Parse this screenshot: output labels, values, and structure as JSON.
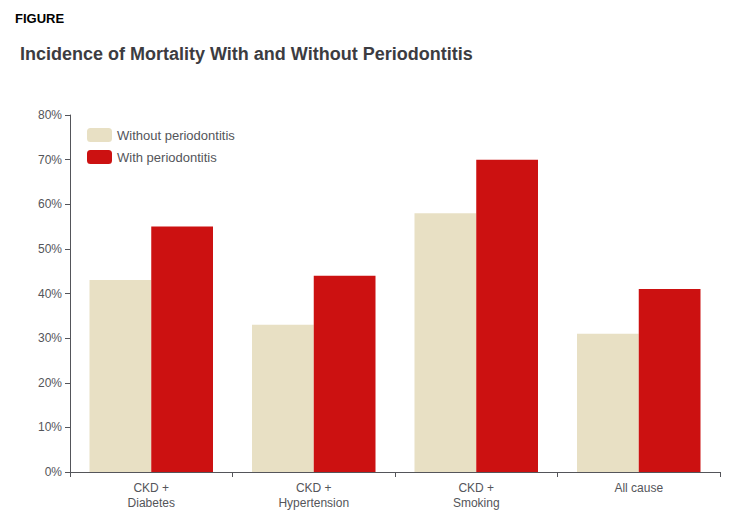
{
  "chart_data": {
    "type": "bar",
    "title": "Incidence of Mortality With and Without Periodontitis",
    "annotations": [
      "FIGURE"
    ],
    "categories": [
      "CKD +\nDiabetes",
      "CKD +\nHypertension",
      "CKD +\nSmoking",
      "All cause"
    ],
    "series": [
      {
        "name": "Without periodontitis",
        "color": "#E8E0C4",
        "values": [
          43,
          33,
          58,
          31
        ]
      },
      {
        "name": "With periodontitis",
        "color": "#CC1111",
        "values": [
          55,
          44,
          70,
          41
        ]
      }
    ],
    "ylim": [
      0,
      80
    ],
    "yticks": [
      {
        "value": 0,
        "label": "0%"
      },
      {
        "value": 10,
        "label": "10%"
      },
      {
        "value": 20,
        "label": "20%"
      },
      {
        "value": 30,
        "label": "30%"
      },
      {
        "value": 40,
        "label": "40%"
      },
      {
        "value": 50,
        "label": "50%"
      },
      {
        "value": 60,
        "label": "60%"
      },
      {
        "value": 70,
        "label": "70%"
      },
      {
        "value": 80,
        "label": "80%"
      }
    ],
    "grid": false,
    "legend": "upper left"
  }
}
